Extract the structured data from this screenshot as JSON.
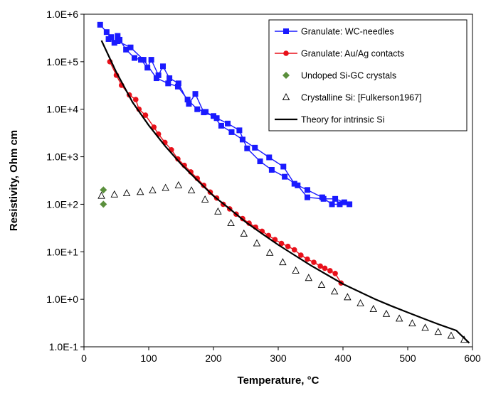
{
  "chart_data": {
    "type": "scatter",
    "title": "",
    "xlabel": "Temperature, °C",
    "ylabel": "Resistivity, Ohm cm",
    "xlim": [
      0,
      600
    ],
    "ylim": [
      0.1,
      1000000
    ],
    "yscale": "log",
    "grid": false,
    "legend_position": "top-right",
    "x_ticks": [
      "0",
      "100",
      "200",
      "300",
      "400",
      "500",
      "600"
    ],
    "y_ticks": [
      "1.0E-1",
      "1.0E+0",
      "1.0E+1",
      "1.0E+2",
      "1.0E+3",
      "1.0E+4",
      "1.0E+5",
      "1.0E+6"
    ],
    "series": [
      {
        "name": "Granulate: WC-needles",
        "color": "#1a1aff",
        "marker": "square",
        "line": true,
        "x": [
          25,
          35,
          42,
          47,
          52,
          55,
          65,
          78,
          88,
          98,
          104,
          115,
          122,
          132,
          146,
          162,
          172,
          185,
          200,
          212,
          228,
          245,
          264,
          286,
          308,
          325,
          345,
          368,
          383,
          395,
          410,
          402,
          388,
          370,
          345,
          330,
          310,
          290,
          272,
          252,
          240,
          222,
          205,
          188,
          175,
          160,
          145,
          130,
          112,
          92,
          72,
          52,
          38
        ],
        "y": [
          600000,
          420000,
          330000,
          250000,
          350000,
          290000,
          180000,
          120000,
          110000,
          75000,
          110000,
          52000,
          80000,
          45000,
          35000,
          13000,
          21000,
          8600,
          7200,
          4500,
          3300,
          2300,
          1550,
          970,
          620,
          270,
          200,
          140,
          100,
          100,
          100,
          110,
          130,
          130,
          140,
          250,
          380,
          530,
          800,
          1500,
          3600,
          5000,
          6500,
          8800,
          10000,
          16000,
          30000,
          35000,
          45000,
          110000,
          200000,
          270000,
          300000
        ]
      },
      {
        "name": "Granulate: Au/Ag contacts",
        "color": "#e8101a",
        "marker": "circle",
        "line": true,
        "x": [
          40,
          50,
          58,
          70,
          80,
          85,
          95,
          108,
          115,
          125,
          135,
          145,
          155,
          165,
          175,
          185,
          195,
          205,
          215,
          225,
          235,
          245,
          255,
          265,
          275,
          285,
          295,
          305,
          315,
          325,
          335,
          345,
          355,
          365,
          372,
          380,
          388,
          397
        ],
        "y": [
          100000,
          52000,
          32000,
          20000,
          16000,
          10000,
          7500,
          4200,
          3000,
          2000,
          1400,
          900,
          660,
          480,
          350,
          250,
          180,
          135,
          100,
          80,
          62,
          50,
          40,
          33,
          27,
          22,
          18,
          15,
          13,
          11,
          8.5,
          7.0,
          6.0,
          5.0,
          4.5,
          4.0,
          3.5,
          2.2
        ]
      },
      {
        "name": "Undoped Si-GC crystals",
        "color": "#5a8f3c",
        "marker": "diamond",
        "line": false,
        "x": [
          30,
          30
        ],
        "y": [
          200,
          100
        ]
      },
      {
        "name": "Crystalline Si: [Fulkerson1967]",
        "color": "#000000",
        "marker": "triangle-open",
        "line": false,
        "x": [
          27,
          47,
          66,
          87,
          106,
          126,
          146,
          166,
          187,
          207,
          227,
          247,
          267,
          287,
          307,
          327,
          347,
          367,
          387,
          407,
          427,
          447,
          467,
          487,
          507,
          527,
          547,
          567,
          587
        ],
        "y": [
          150,
          160,
          170,
          180,
          195,
          220,
          250,
          195,
          125,
          70,
          40,
          24,
          15,
          9.5,
          6.0,
          4.0,
          2.8,
          2.0,
          1.45,
          1.1,
          0.82,
          0.62,
          0.49,
          0.39,
          0.31,
          0.25,
          0.205,
          0.17,
          0.14
        ]
      },
      {
        "name": "Theory for intrinsic Si",
        "color": "#000000",
        "marker": "none",
        "line": true,
        "x": [
          27,
          50,
          75,
          100,
          125,
          150,
          175,
          200,
          225,
          250,
          275,
          300,
          325,
          350,
          375,
          400,
          425,
          450,
          475,
          500,
          525,
          550,
          575,
          595
        ],
        "y": [
          280000,
          60000,
          14000,
          4600,
          1700,
          700,
          320,
          150,
          80,
          42,
          24,
          14,
          8.5,
          5.2,
          3.3,
          2.1,
          1.45,
          1.0,
          0.72,
          0.53,
          0.39,
          0.29,
          0.22,
          0.12
        ]
      }
    ]
  }
}
